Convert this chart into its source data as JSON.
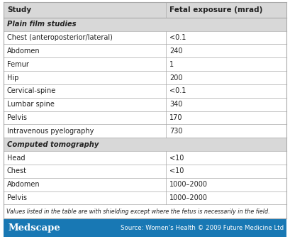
{
  "header": [
    "Study",
    "Fetal exposure (mrad)"
  ],
  "rows": [
    {
      "type": "section",
      "col1": "Plain film studies",
      "col2": ""
    },
    {
      "type": "data",
      "col1": "Chest (anteroposterior/lateral)",
      "col2": "<0.1"
    },
    {
      "type": "data",
      "col1": "Abdomen",
      "col2": "240"
    },
    {
      "type": "data",
      "col1": "Femur",
      "col2": "1"
    },
    {
      "type": "data",
      "col1": "Hip",
      "col2": "200"
    },
    {
      "type": "data",
      "col1": "Cervical-spine",
      "col2": "<0.1"
    },
    {
      "type": "data",
      "col1": "Lumbar spine",
      "col2": "340"
    },
    {
      "type": "data",
      "col1": "Pelvis",
      "col2": "170"
    },
    {
      "type": "data",
      "col1": "Intravenous pyelography",
      "col2": "730"
    },
    {
      "type": "section",
      "col1": "Computed tomography",
      "col2": ""
    },
    {
      "type": "data",
      "col1": "Head",
      "col2": "<10"
    },
    {
      "type": "data",
      "col1": "Chest",
      "col2": "<10"
    },
    {
      "type": "data",
      "col1": "Abdomen",
      "col2": "1000–2000"
    },
    {
      "type": "data",
      "col1": "Pelvis",
      "col2": "1000–2000"
    }
  ],
  "footnote": "Values listed in the table are with shielding except where the fetus is necessarily in the field.",
  "footer_left": "Medscape",
  "footer_right": "Source: Women's Health © 2009 Future Medicine Ltd",
  "header_bg": "#d8d8d8",
  "section_bg": "#d8d8d8",
  "data_bg": "#ffffff",
  "footer_bg": "#1878b4",
  "border_color": "#aaaaaa",
  "text_color": "#222222",
  "footer_text_color": "#ffffff",
  "col_split": 0.575,
  "fig_width": 4.09,
  "fig_height": 3.37,
  "dpi": 100
}
